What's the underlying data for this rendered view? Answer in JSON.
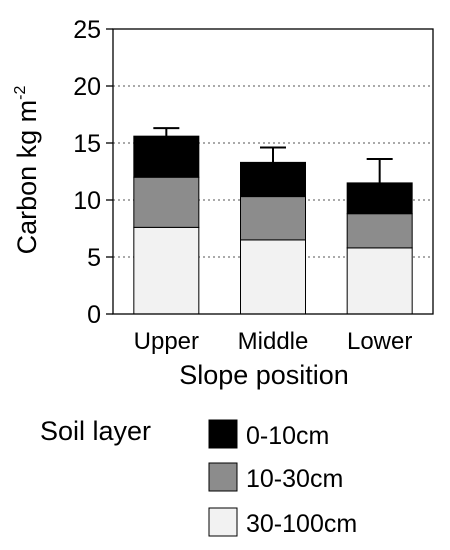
{
  "chart_data": {
    "type": "bar",
    "stacked": true,
    "xlabel": "Slope position",
    "ylabel": "Carbon kg m",
    "ylabel_superscript": "-2",
    "categories": [
      "Upper",
      "Middle",
      "Lower"
    ],
    "series": [
      {
        "name": "30-100cm",
        "values": [
          7.6,
          6.5,
          5.8
        ],
        "color": "#f2f2f2"
      },
      {
        "name": "10-30cm",
        "values": [
          4.4,
          3.8,
          3.0
        ],
        "color": "#8c8c8c"
      },
      {
        "name": "0-10cm",
        "values": [
          3.6,
          3.0,
          2.7
        ],
        "color": "#000000"
      }
    ],
    "error_upper": [
      0.7,
      1.3,
      2.1
    ],
    "ylim": [
      0,
      25
    ],
    "yticks": [
      "0",
      "5",
      "10",
      "15",
      "20",
      "25"
    ],
    "ytick_values": [
      0,
      5,
      10,
      15,
      20,
      25
    ],
    "grid": "dotted-horizontal",
    "legend": {
      "title": "Soil layer",
      "placement": "bottom",
      "entries": [
        "0-10cm",
        "10-30cm",
        "30-100cm"
      ],
      "colors": [
        "#000000",
        "#8c8c8c",
        "#f2f2f2"
      ]
    }
  }
}
